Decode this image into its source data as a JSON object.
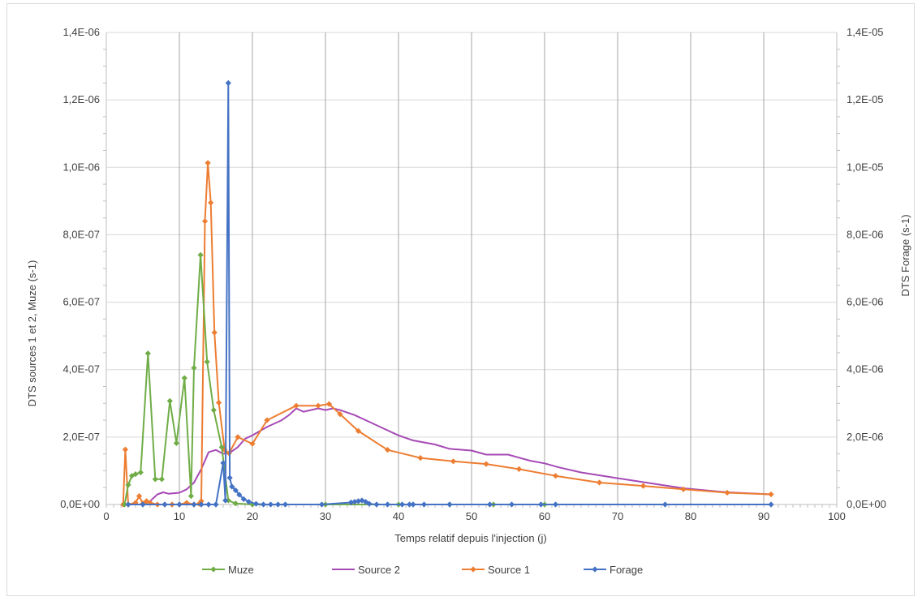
{
  "chart_data": {
    "type": "line",
    "x_axis": {
      "label": "Temps relatif depuis l'injection (j)",
      "min": 0,
      "max": 100,
      "major_step": 10,
      "minor_step": 1
    },
    "y_left": {
      "label": "DTS sources 1 et 2, Muze (s-1)",
      "min": 0,
      "max": 1.4e-06,
      "step": 2e-07,
      "tick_labels": [
        "0,0E+00",
        "2,0E-07",
        "4,0E-07",
        "6,0E-07",
        "8,0E-07",
        "1,0E-06",
        "1,2E-06",
        "1,4E-06"
      ]
    },
    "y_right": {
      "label": "DTS Forage (s-1)",
      "min": 0,
      "max": 1.4e-05,
      "step": 2e-06,
      "tick_labels": [
        "0,0E+00",
        "2,0E-06",
        "4,0E-06",
        "6,0E-06",
        "8,0E-06",
        "1,0E-05",
        "1,2E-05",
        "1,4E-05"
      ]
    },
    "x_tick_labels": [
      "0",
      "10",
      "20",
      "30",
      "40",
      "50",
      "60",
      "70",
      "80",
      "90",
      "100"
    ],
    "grid": true,
    "legend_position": "bottom",
    "series": [
      {
        "name": "Muze",
        "color": "#70ad47",
        "axis": "left",
        "markers": true,
        "points": [
          [
            2.5,
            0
          ],
          [
            3,
            5.8e-08
          ],
          [
            3.5,
            8.5e-08
          ],
          [
            4,
            9e-08
          ],
          [
            4.7,
            9.5e-08
          ],
          [
            5.7,
            4.48e-07
          ],
          [
            6.7,
            7.5e-08
          ],
          [
            7.6,
            7.5e-08
          ],
          [
            8.7,
            3.07e-07
          ],
          [
            9.6,
            1.82e-07
          ],
          [
            10.7,
            3.75e-07
          ],
          [
            11.6,
            2.5e-08
          ],
          [
            12,
            4.05e-07
          ],
          [
            12.9,
            7.4e-07
          ],
          [
            13.8,
            4.23e-07
          ],
          [
            14.7,
            2.8e-07
          ],
          [
            15.8,
            1.7e-07
          ],
          [
            16.7,
            1.2e-08
          ],
          [
            17.7,
            3e-09
          ],
          [
            20,
            0
          ],
          [
            30,
            0
          ],
          [
            40,
            0
          ],
          [
            47,
            0
          ],
          [
            53,
            0
          ],
          [
            60,
            0
          ]
        ]
      },
      {
        "name": "Source 2",
        "color": "#a64ab5",
        "axis": "left",
        "markers": false,
        "points": [
          [
            2,
            0
          ],
          [
            5,
            0
          ],
          [
            6,
            1e-08
          ],
          [
            7,
            3e-08
          ],
          [
            7.8,
            3.6e-08
          ],
          [
            8.5,
            3.2e-08
          ],
          [
            10,
            3.5e-08
          ],
          [
            11,
            4.5e-08
          ],
          [
            12,
            6.5e-08
          ],
          [
            13,
            1.05e-07
          ],
          [
            14,
            1.55e-07
          ],
          [
            15,
            1.62e-07
          ],
          [
            16,
            1.5e-07
          ],
          [
            17,
            1.55e-07
          ],
          [
            18,
            1.7e-07
          ],
          [
            19,
            1.95e-07
          ],
          [
            20,
            2.05e-07
          ],
          [
            22,
            2.3e-07
          ],
          [
            24,
            2.5e-07
          ],
          [
            25,
            2.65e-07
          ],
          [
            26,
            2.85e-07
          ],
          [
            27,
            2.75e-07
          ],
          [
            28,
            2.8e-07
          ],
          [
            29,
            2.85e-07
          ],
          [
            30,
            2.8e-07
          ],
          [
            31,
            2.85e-07
          ],
          [
            32,
            2.8e-07
          ],
          [
            34,
            2.65e-07
          ],
          [
            36,
            2.45e-07
          ],
          [
            38,
            2.25e-07
          ],
          [
            40,
            2.05e-07
          ],
          [
            42,
            1.9e-07
          ],
          [
            45,
            1.78e-07
          ],
          [
            47,
            1.65e-07
          ],
          [
            50,
            1.6e-07
          ],
          [
            52,
            1.48e-07
          ],
          [
            55,
            1.48e-07
          ],
          [
            58,
            1.3e-07
          ],
          [
            60,
            1.22e-07
          ],
          [
            62,
            1.1e-07
          ],
          [
            65,
            9.5e-08
          ],
          [
            68,
            8.5e-08
          ],
          [
            70,
            7.8e-08
          ],
          [
            73,
            6.8e-08
          ],
          [
            76,
            5.8e-08
          ],
          [
            79,
            4.8e-08
          ],
          [
            82,
            4.2e-08
          ],
          [
            85,
            3.6e-08
          ],
          [
            88,
            3.3e-08
          ],
          [
            91,
            3e-08
          ]
        ]
      },
      {
        "name": "Source 1",
        "color": "#ed7d31",
        "axis": "left",
        "markers": true,
        "points": [
          [
            2.3,
            0
          ],
          [
            2.6,
            1.63e-07
          ],
          [
            3,
            0
          ],
          [
            4,
            5e-09
          ],
          [
            4.5,
            2.5e-08
          ],
          [
            5,
            3e-09
          ],
          [
            5.5,
            1e-08
          ],
          [
            6,
            5e-09
          ],
          [
            7,
            0
          ],
          [
            8,
            0
          ],
          [
            9,
            0
          ],
          [
            10,
            0
          ],
          [
            11,
            5e-09
          ],
          [
            12,
            0
          ],
          [
            12.7,
            2e-09
          ],
          [
            13,
            1e-08
          ],
          [
            13.5,
            8.4e-07
          ],
          [
            13.9,
            1.013e-06
          ],
          [
            14.3,
            8.95e-07
          ],
          [
            14.8,
            5.1e-07
          ],
          [
            15.4,
            3.02e-07
          ],
          [
            16.2,
            1.62e-07
          ],
          [
            16.8,
            1.52e-07
          ],
          [
            18,
            2e-07
          ],
          [
            20,
            1.8e-07
          ],
          [
            22,
            2.5e-07
          ],
          [
            26,
            2.93e-07
          ],
          [
            29,
            2.93e-07
          ],
          [
            30.5,
            2.98e-07
          ],
          [
            32,
            2.68e-07
          ],
          [
            34.5,
            2.18e-07
          ],
          [
            38.5,
            1.62e-07
          ],
          [
            43,
            1.38e-07
          ],
          [
            47.5,
            1.28e-07
          ],
          [
            52,
            1.2e-07
          ],
          [
            56.5,
            1.05e-07
          ],
          [
            61.5,
            8.5e-08
          ],
          [
            67.5,
            6.5e-08
          ],
          [
            73.5,
            5.5e-08
          ],
          [
            79,
            4.5e-08
          ],
          [
            85,
            3.5e-08
          ],
          [
            91,
            3e-08
          ]
        ]
      },
      {
        "name": "Forage",
        "color": "#4472c4",
        "axis": "right",
        "markers": true,
        "points": [
          [
            3,
            0
          ],
          [
            5,
            0
          ],
          [
            8,
            0
          ],
          [
            10,
            0
          ],
          [
            12,
            0
          ],
          [
            13,
            0
          ],
          [
            14,
            0
          ],
          [
            15,
            0
          ],
          [
            16,
            1.23e-06
          ],
          [
            16.3,
            1.2e-07
          ],
          [
            16.7,
            1.25e-05
          ],
          [
            16.9,
            7.9e-07
          ],
          [
            17.2,
            5.3e-07
          ],
          [
            17.7,
            4.2e-07
          ],
          [
            18.2,
            2.9e-07
          ],
          [
            18.8,
            1.6e-07
          ],
          [
            19.5,
            8e-08
          ],
          [
            20.5,
            2e-08
          ],
          [
            21.5,
            0
          ],
          [
            22.5,
            0
          ],
          [
            23.5,
            0
          ],
          [
            24.5,
            0
          ],
          [
            29.5,
            0
          ],
          [
            33.5,
            6e-08
          ],
          [
            34,
            8e-08
          ],
          [
            34.5,
            1e-07
          ],
          [
            35,
            1.2e-07
          ],
          [
            35.5,
            8e-08
          ],
          [
            36,
            2e-08
          ],
          [
            37,
            0
          ],
          [
            38.5,
            0
          ],
          [
            40.5,
            0
          ],
          [
            41.5,
            0
          ],
          [
            42,
            0
          ],
          [
            43.5,
            0
          ],
          [
            47,
            0
          ],
          [
            52.5,
            0
          ],
          [
            55.5,
            0
          ],
          [
            59.5,
            0
          ],
          [
            61.5,
            0
          ],
          [
            76.5,
            0
          ],
          [
            91,
            0
          ]
        ]
      }
    ]
  }
}
